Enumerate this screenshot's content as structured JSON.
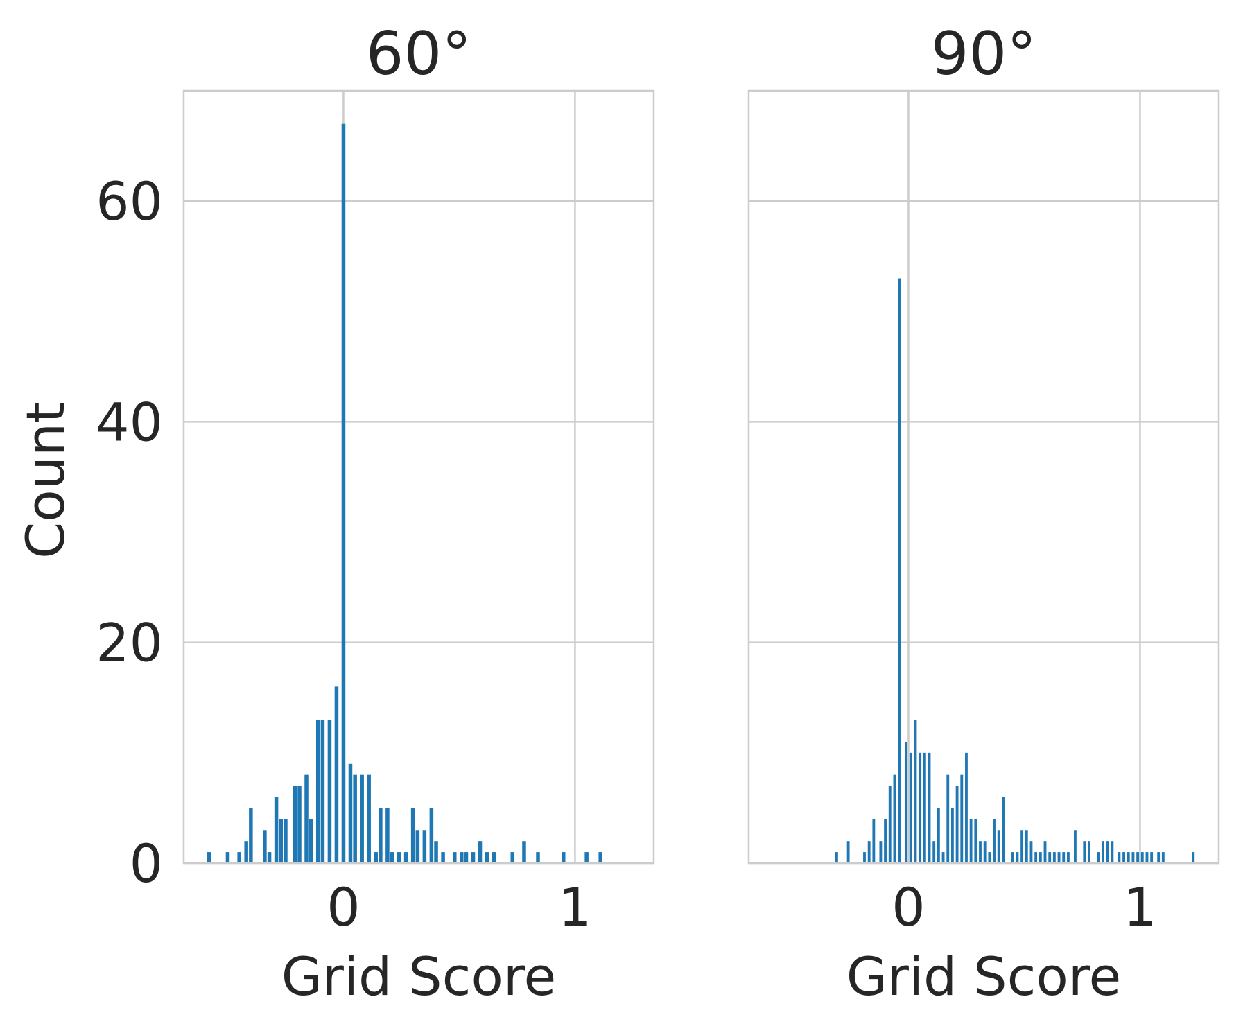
{
  "figure": {
    "ylabel": "Count"
  },
  "chart_data": [
    {
      "type": "bar",
      "title": "60°",
      "xlabel": "Grid Score",
      "ylabel": "Count",
      "xlim": [
        -0.69,
        1.34
      ],
      "ylim": [
        0,
        70
      ],
      "xticks": [
        0,
        1
      ],
      "xtick_labels": [
        "0",
        "1"
      ],
      "yticks": [
        0,
        20,
        40,
        60
      ],
      "ytick_labels": [
        "0",
        "20",
        "40",
        "60"
      ],
      "grid": true,
      "color": "#1f77b4",
      "bin_width": 0.0165,
      "x": [
        -0.58,
        -0.5,
        -0.45,
        -0.42,
        -0.4,
        -0.34,
        -0.32,
        -0.29,
        -0.27,
        -0.25,
        -0.21,
        -0.19,
        -0.16,
        -0.14,
        -0.11,
        -0.09,
        -0.06,
        -0.03,
        0.0,
        0.03,
        0.05,
        0.08,
        0.11,
        0.14,
        0.16,
        0.19,
        0.21,
        0.24,
        0.27,
        0.3,
        0.32,
        0.35,
        0.38,
        0.4,
        0.43,
        0.48,
        0.51,
        0.53,
        0.56,
        0.59,
        0.62,
        0.65,
        0.73,
        0.78,
        0.84,
        0.95,
        1.05,
        1.11
      ],
      "values": [
        1,
        1,
        1,
        2,
        5,
        3,
        1,
        6,
        4,
        4,
        7,
        7,
        8,
        4,
        13,
        13,
        13,
        16,
        67,
        9,
        8,
        8,
        8,
        1,
        5,
        5,
        1,
        1,
        1,
        5,
        3,
        3,
        5,
        2,
        1,
        1,
        1,
        1,
        1,
        2,
        1,
        1,
        1,
        2,
        1,
        1,
        1,
        1
      ]
    },
    {
      "type": "bar",
      "title": "90°",
      "xlabel": "Grid Score",
      "ylabel": "",
      "xlim": [
        -0.69,
        1.34
      ],
      "ylim": [
        0,
        70
      ],
      "xticks": [
        0,
        1
      ],
      "xtick_labels": [
        "0",
        "1"
      ],
      "yticks": [
        0,
        20,
        40,
        60
      ],
      "ytick_labels": [
        "",
        "",
        "",
        ""
      ],
      "grid": true,
      "color": "#1f77b4",
      "bin_width": 0.0115,
      "x": [
        -0.31,
        -0.26,
        -0.19,
        -0.17,
        -0.15,
        -0.12,
        -0.1,
        -0.08,
        -0.06,
        -0.04,
        -0.01,
        0.01,
        0.03,
        0.05,
        0.07,
        0.09,
        0.11,
        0.13,
        0.15,
        0.17,
        0.19,
        0.21,
        0.23,
        0.25,
        0.27,
        0.29,
        0.31,
        0.33,
        0.35,
        0.37,
        0.39,
        0.41,
        0.45,
        0.47,
        0.49,
        0.51,
        0.53,
        0.55,
        0.57,
        0.59,
        0.61,
        0.63,
        0.65,
        0.67,
        0.69,
        0.72,
        0.76,
        0.78,
        0.82,
        0.84,
        0.86,
        0.88,
        0.91,
        0.93,
        0.95,
        0.97,
        0.99,
        1.01,
        1.03,
        1.05,
        1.08,
        1.1,
        1.23
      ],
      "values": [
        1,
        2,
        1,
        2,
        4,
        2,
        4,
        7,
        8,
        53,
        11,
        10,
        13,
        10,
        10,
        10,
        2,
        5,
        1,
        8,
        5,
        7,
        8,
        10,
        4,
        4,
        2,
        2,
        1,
        4,
        3,
        6,
        1,
        1,
        3,
        3,
        2,
        1,
        1,
        2,
        1,
        1,
        1,
        1,
        1,
        3,
        2,
        2,
        1,
        2,
        2,
        2,
        1,
        1,
        1,
        1,
        1,
        1,
        1,
        1,
        1,
        1,
        1
      ]
    }
  ]
}
